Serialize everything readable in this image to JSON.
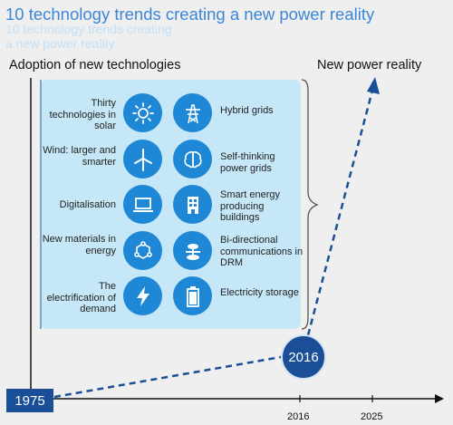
{
  "title": "10 technology trends creating a new power reality",
  "ghost_lines": [
    "10 technology trends creating",
    "a new power reality"
  ],
  "heading_left": "Adoption of new technologies",
  "heading_right": "New power reality",
  "trends_left": [
    {
      "label": "Thirty technologies in solar",
      "icon": "sun-icon"
    },
    {
      "label": "Wind: larger and smarter",
      "icon": "wind-turbine-icon"
    },
    {
      "label": "Digitalisation",
      "icon": "laptop-icon"
    },
    {
      "label": "New materials in energy",
      "icon": "molecule-icon"
    },
    {
      "label": "The electrification of demand",
      "icon": "lightning-icon"
    }
  ],
  "trends_right": [
    {
      "label": "Hybrid grids",
      "icon": "power-tower-icon"
    },
    {
      "label": "Self-thinking power grids",
      "icon": "brain-icon"
    },
    {
      "label": "Smart energy producing buildings",
      "icon": "building-icon"
    },
    {
      "label": "Bi-directional communications in DRM",
      "icon": "signal-icon"
    },
    {
      "label": "Electricity storage",
      "icon": "battery-icon"
    }
  ],
  "start_year": "1975",
  "current_year": "2016",
  "axis_ticks": [
    "2016",
    "2025"
  ],
  "colors": {
    "title": "#3d86d6",
    "circle": "#1e88d6",
    "dark": "#1a4f97",
    "panel": "#c6e7f7"
  }
}
